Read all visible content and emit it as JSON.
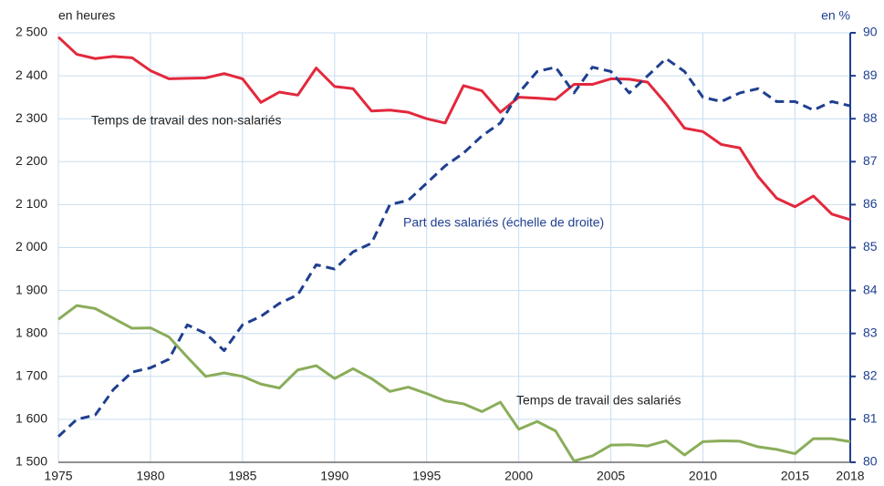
{
  "chart_data": {
    "type": "line",
    "unit_left": "en heures",
    "unit_right": "en %",
    "x": [
      1975,
      1976,
      1977,
      1978,
      1979,
      1980,
      1981,
      1982,
      1983,
      1984,
      1985,
      1986,
      1987,
      1988,
      1989,
      1990,
      1991,
      1992,
      1993,
      1994,
      1995,
      1996,
      1997,
      1998,
      1999,
      2000,
      2001,
      2002,
      2003,
      2004,
      2005,
      2006,
      2007,
      2008,
      2009,
      2010,
      2011,
      2012,
      2013,
      2014,
      2015,
      2016,
      2017,
      2018
    ],
    "xlim": [
      1975,
      2018
    ],
    "xticks": [
      1975,
      1980,
      1985,
      1990,
      1995,
      2000,
      2005,
      2010,
      2015,
      2018
    ],
    "ylim": [
      1500,
      2500
    ],
    "yticks": [
      {
        "value": 1500,
        "label": "1 500"
      },
      {
        "value": 1600,
        "label": "1 600"
      },
      {
        "value": 1700,
        "label": "1 700"
      },
      {
        "value": 1800,
        "label": "1 800"
      },
      {
        "value": 1900,
        "label": "1 900"
      },
      {
        "value": 2000,
        "label": "2 000"
      },
      {
        "value": 2100,
        "label": "2 100"
      },
      {
        "value": 2200,
        "label": "2 200"
      },
      {
        "value": 2300,
        "label": "2 300"
      },
      {
        "value": 2400,
        "label": "2 400"
      },
      {
        "value": 2500,
        "label": "2 500"
      }
    ],
    "y2lim": [
      80,
      90
    ],
    "y2ticks": [
      80,
      81,
      82,
      83,
      84,
      85,
      86,
      87,
      88,
      89,
      90
    ],
    "grid": true,
    "series": [
      {
        "name": "Temps de travail des non-salariés",
        "color": "#e3283c",
        "values": [
          2490,
          2450,
          2440,
          2445,
          2442,
          2412,
          2393,
          2394,
          2395,
          2405,
          2393,
          2338,
          2362,
          2355,
          2418,
          2375,
          2370,
          2318,
          2320,
          2315,
          2300,
          2290,
          2377,
          2365,
          2315,
          2350,
          2348,
          2345,
          2380,
          2380,
          2393,
          2392,
          2385,
          2335,
          2278,
          2270,
          2240,
          2232,
          2165,
          2115,
          2095,
          2120,
          2078,
          2065
        ]
      },
      {
        "name": "Part des salariés (échelle de droite)",
        "color": "#1f3f8f",
        "axis": "y2",
        "dashed": true,
        "values": [
          80.6,
          81.0,
          81.1,
          81.7,
          82.1,
          82.2,
          82.4,
          83.2,
          83.0,
          82.6,
          83.2,
          83.4,
          83.7,
          83.9,
          84.6,
          84.5,
          84.9,
          85.1,
          86.0,
          86.1,
          86.5,
          86.9,
          87.2,
          87.6,
          87.9,
          88.6,
          89.1,
          89.2,
          88.6,
          89.2,
          89.1,
          88.6,
          89.0,
          89.4,
          89.1,
          88.5,
          88.4,
          88.6,
          88.7,
          88.4,
          88.4,
          88.2,
          88.4,
          88.3
        ]
      },
      {
        "name": "Temps de travail des salariés",
        "color": "#8aad5a",
        "values": [
          1833,
          1865,
          1858,
          1835,
          1812,
          1813,
          1792,
          1745,
          1700,
          1708,
          1700,
          1682,
          1673,
          1715,
          1725,
          1695,
          1718,
          1695,
          1665,
          1675,
          1660,
          1643,
          1636,
          1618,
          1640,
          1577,
          1595,
          1573,
          1503,
          1515,
          1540,
          1541,
          1538,
          1550,
          1517,
          1548,
          1550,
          1549,
          1536,
          1530,
          1520,
          1555,
          1555,
          1548
        ]
      }
    ]
  }
}
